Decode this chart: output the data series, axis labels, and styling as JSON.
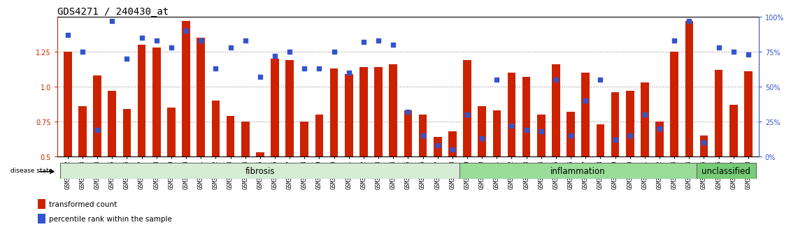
{
  "title": "GDS4271 / 240430_at",
  "samples": [
    "GSM380382",
    "GSM380383",
    "GSM380384",
    "GSM380385",
    "GSM380386",
    "GSM380387",
    "GSM380388",
    "GSM380389",
    "GSM380390",
    "GSM380391",
    "GSM380392",
    "GSM380393",
    "GSM380394",
    "GSM380395",
    "GSM380396",
    "GSM380397",
    "GSM380398",
    "GSM380399",
    "GSM380400",
    "GSM380401",
    "GSM380402",
    "GSM380403",
    "GSM380404",
    "GSM380405",
    "GSM380406",
    "GSM380407",
    "GSM380408",
    "GSM380409",
    "GSM380410",
    "GSM380411",
    "GSM380412",
    "GSM380413",
    "GSM380414",
    "GSM380415",
    "GSM380416",
    "GSM380417",
    "GSM380418",
    "GSM380419",
    "GSM380420",
    "GSM380421",
    "GSM380422",
    "GSM380423",
    "GSM380424",
    "GSM380425",
    "GSM380426",
    "GSM380427",
    "GSM380428"
  ],
  "bar_values": [
    1.25,
    0.86,
    1.08,
    0.97,
    0.84,
    1.3,
    1.28,
    0.85,
    1.47,
    1.35,
    0.9,
    0.79,
    0.75,
    0.53,
    1.2,
    1.19,
    0.75,
    0.8,
    1.13,
    1.09,
    1.14,
    1.14,
    1.16,
    0.83,
    0.8,
    0.64,
    0.68,
    1.19,
    0.86,
    0.83,
    1.1,
    1.07,
    0.8,
    1.16,
    0.82,
    1.1,
    0.73,
    0.96,
    0.97,
    1.03,
    0.75,
    1.25,
    1.47,
    0.65,
    1.12,
    0.87,
    1.11
  ],
  "percentile_pct": [
    87,
    75,
    19,
    97,
    70,
    85,
    83,
    78,
    90,
    83,
    63,
    78,
    83,
    57,
    72,
    75,
    63,
    63,
    75,
    60,
    82,
    83,
    80,
    32,
    15,
    8,
    5,
    30,
    13,
    55,
    22,
    19,
    18,
    55,
    15,
    40,
    55,
    12,
    15,
    30,
    20,
    83,
    97,
    10,
    78,
    75,
    73
  ],
  "disease_groups": [
    {
      "label": "fibrosis",
      "start": 0,
      "end": 27,
      "color": "#d5edd5"
    },
    {
      "label": "inflammation",
      "start": 27,
      "end": 43,
      "color": "#99dd99"
    },
    {
      "label": "unclassified",
      "start": 43,
      "end": 47,
      "color": "#77cc77"
    }
  ],
  "ylim_left": [
    0.5,
    1.5
  ],
  "yticks_left": [
    0.5,
    0.75,
    1.0,
    1.25
  ],
  "ylim_right": [
    0,
    100
  ],
  "yticks_right": [
    0,
    25,
    50,
    75,
    100
  ],
  "bar_color": "#cc2200",
  "dot_color": "#3355cc",
  "title_fontsize": 10,
  "tick_fontsize": 5.5,
  "group_label_fontsize": 8.5,
  "legend_fontsize": 7.5
}
